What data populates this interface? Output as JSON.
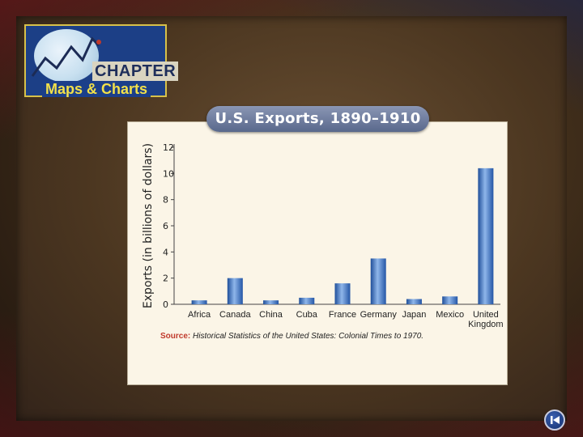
{
  "logo": {
    "chapter": "CHAPTER",
    "subtitle": "Maps & Charts"
  },
  "chart_title": "U.S. Exports, 1890–1910",
  "chart_data": {
    "type": "bar",
    "title": "U.S. Exports, 1890–1910",
    "ylabel": "Exports (in billions of dollars)",
    "xlabel": "",
    "ylim": [
      0,
      12
    ],
    "yticks": [
      0,
      2,
      4,
      6,
      8,
      10,
      12
    ],
    "categories": [
      "Africa",
      "Canada",
      "China",
      "Cuba",
      "France",
      "Germany",
      "Japan",
      "Mexico",
      "United Kingdom"
    ],
    "category_lines": [
      [
        "Africa"
      ],
      [
        "Canada"
      ],
      [
        "China"
      ],
      [
        "Cuba"
      ],
      [
        "France"
      ],
      [
        "Germany"
      ],
      [
        "Japan"
      ],
      [
        "Mexico"
      ],
      [
        "United",
        "Kingdom"
      ]
    ],
    "values": [
      0.3,
      2.0,
      0.3,
      0.5,
      1.6,
      3.5,
      0.4,
      0.6,
      10.4
    ],
    "grid": false,
    "bar_color": "#3f79c8"
  },
  "source": {
    "label": "Source:",
    "text": "Historical Statistics of the United States: Colonial Times to 1970."
  },
  "colors": {
    "logo_bg": "#1c3f86",
    "logo_text_yellow": "#f2e04a",
    "panel_bg": "#fbf5e7",
    "source_red": "#c0392b"
  },
  "nav": {
    "home_icon": "skip-to-start-icon"
  }
}
